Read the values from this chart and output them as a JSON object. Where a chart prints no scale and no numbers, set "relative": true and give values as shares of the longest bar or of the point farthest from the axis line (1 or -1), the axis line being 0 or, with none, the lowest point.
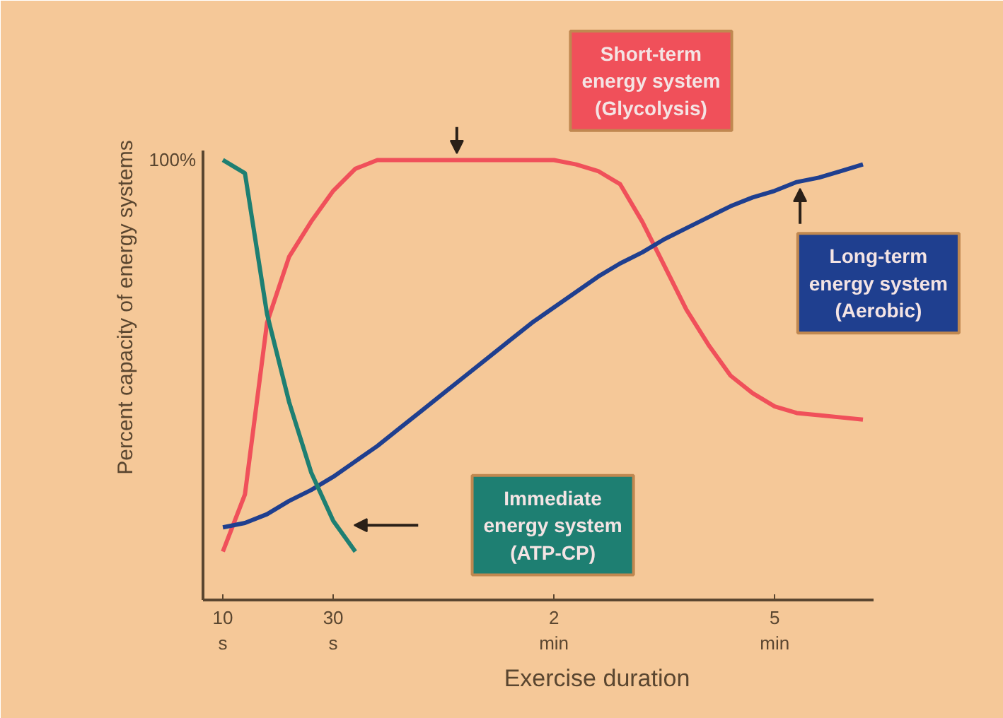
{
  "chart_data": {
    "type": "line",
    "relative": true,
    "xlabel": "Exercise duration",
    "ylabel": "Percent capacity of energy systems",
    "categories": [
      null,
      "10\ns",
      null,
      null,
      null,
      null,
      "30\ns",
      null,
      null,
      null,
      null,
      null,
      null,
      null,
      null,
      null,
      "2\nmin",
      null,
      null,
      null,
      null,
      null,
      null,
      null,
      null,
      null,
      "5\nmin",
      null,
      null,
      null,
      null
    ],
    "grid": false,
    "marker": "none",
    "line_style": "solid",
    "series": [
      {
        "color": "#f0505a",
        "values": [
          null,
          0.11,
          0.24,
          0.63,
          0.78,
          0.86,
          0.93,
          0.98,
          1.0,
          1.0,
          1.0,
          1.0,
          1.0,
          1.0,
          1.0,
          1.0,
          1.0,
          0.99,
          0.975,
          0.945,
          0.86,
          0.76,
          0.66,
          0.58,
          0.51,
          0.47,
          0.44,
          0.425,
          0.42,
          0.415,
          0.41
        ]
      },
      {
        "color": "#1f3f8f",
        "values": [
          null,
          0.165,
          0.175,
          0.195,
          0.225,
          0.25,
          0.28,
          0.315,
          0.35,
          0.39,
          0.43,
          0.47,
          0.51,
          0.55,
          0.59,
          0.63,
          0.665,
          0.7,
          0.735,
          0.765,
          0.79,
          0.82,
          0.845,
          0.87,
          0.895,
          0.915,
          0.93,
          0.95,
          0.96,
          0.975,
          0.99
        ]
      },
      {
        "color": "#1e7f72",
        "values": [
          null,
          1.0,
          0.97,
          0.65,
          0.45,
          0.29,
          0.18,
          0.11,
          null,
          null,
          null,
          null,
          null,
          null,
          null,
          null,
          null,
          null,
          null,
          null,
          null,
          null,
          null,
          null,
          null,
          null,
          null,
          null,
          null,
          null,
          null
        ]
      }
    ],
    "annotations": [
      "Short-term\nenergy system\n(Glycolysis)",
      "Long-term\nenergy system\n(Aerobic)",
      "Immediate\nenergy system\n(ATP-CP)",
      "100%"
    ]
  }
}
